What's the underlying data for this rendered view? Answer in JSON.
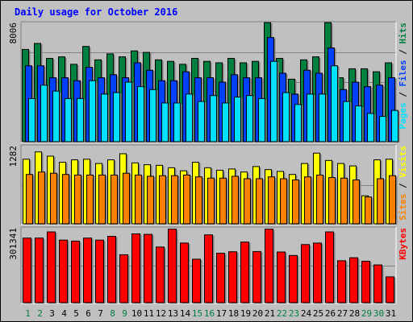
{
  "title": "Daily usage for October 2016",
  "colors": {
    "background": "#c0c0c0",
    "title": "#0000ff",
    "hits": "#008040",
    "files": "#0040ff",
    "pages": "#00e0ff",
    "visits": "#ffff00",
    "sites": "#ff8000",
    "kbytes": "#ff0000",
    "weekday": "#000000",
    "weekend": "#008040"
  },
  "chart_data": [
    {
      "type": "bar",
      "panel": "hits-files-pages",
      "categories": [
        "1",
        "2",
        "3",
        "4",
        "5",
        "6",
        "7",
        "8",
        "9",
        "10",
        "11",
        "12",
        "13",
        "14",
        "15",
        "16",
        "17",
        "18",
        "19",
        "20",
        "21",
        "22",
        "23",
        "24",
        "25",
        "26",
        "27",
        "28",
        "29",
        "30",
        "31"
      ],
      "weekend_days": [
        "1",
        "2",
        "8",
        "9",
        "15",
        "16",
        "22",
        "23",
        "29",
        "30"
      ],
      "max_label": "8006",
      "ylim": [
        0,
        8006
      ],
      "series": [
        {
          "name": "Hits",
          "values": [
            6200,
            6600,
            5600,
            5700,
            5200,
            6400,
            5500,
            5900,
            5700,
            6100,
            6000,
            5500,
            5400,
            5200,
            5600,
            5400,
            5300,
            5600,
            5300,
            5400,
            8000,
            5600,
            4200,
            5500,
            5700,
            8000,
            4300,
            4900,
            4900,
            4700,
            5300
          ]
        },
        {
          "name": "Files",
          "values": [
            5100,
            5100,
            4300,
            4300,
            4100,
            5000,
            4300,
            4500,
            4300,
            5300,
            4800,
            4100,
            4100,
            4700,
            4300,
            4300,
            4000,
            4500,
            4300,
            4300,
            7000,
            4600,
            3200,
            4800,
            4600,
            6300,
            3500,
            4000,
            3700,
            3800,
            4300
          ]
        },
        {
          "name": "Pages",
          "values": [
            2900,
            3800,
            3400,
            2900,
            2900,
            4100,
            3200,
            3300,
            4000,
            3700,
            3500,
            2600,
            2600,
            3200,
            2700,
            3100,
            2600,
            3000,
            3100,
            2900,
            5400,
            3300,
            2500,
            3200,
            3200,
            5100,
            2700,
            2400,
            1900,
            1700,
            2100
          ]
        }
      ]
    },
    {
      "type": "bar",
      "panel": "visits-sites",
      "categories": [
        "1",
        "2",
        "3",
        "4",
        "5",
        "6",
        "7",
        "8",
        "9",
        "10",
        "11",
        "12",
        "13",
        "14",
        "15",
        "16",
        "17",
        "18",
        "19",
        "20",
        "21",
        "22",
        "23",
        "24",
        "25",
        "26",
        "27",
        "28",
        "29",
        "30",
        "31"
      ],
      "max_label": "1282",
      "ylim": [
        0,
        1282
      ],
      "series": [
        {
          "name": "Visits",
          "values": [
            1060,
            1180,
            1110,
            1010,
            1050,
            1060,
            990,
            1050,
            1150,
            1000,
            970,
            960,
            920,
            870,
            1010,
            920,
            880,
            900,
            850,
            940,
            890,
            860,
            810,
            990,
            1160,
            1040,
            990,
            950,
            460,
            1050,
            1060
          ]
        },
        {
          "name": "Sites",
          "values": [
            810,
            850,
            830,
            810,
            800,
            800,
            800,
            800,
            830,
            800,
            780,
            790,
            790,
            800,
            770,
            750,
            750,
            780,
            740,
            740,
            770,
            740,
            720,
            770,
            800,
            760,
            750,
            720,
            440,
            740,
            790
          ]
        }
      ]
    },
    {
      "type": "bar",
      "panel": "kbytes",
      "categories": [
        "1",
        "2",
        "3",
        "4",
        "5",
        "6",
        "7",
        "8",
        "9",
        "10",
        "11",
        "12",
        "13",
        "14",
        "15",
        "16",
        "17",
        "18",
        "19",
        "20",
        "21",
        "22",
        "23",
        "24",
        "25",
        "26",
        "27",
        "28",
        "29",
        "30",
        "31"
      ],
      "max_label": "301341",
      "ylim": [
        0,
        301341
      ],
      "series": [
        {
          "name": "KBytes",
          "values": [
            260000,
            260000,
            285000,
            252000,
            248000,
            260000,
            252000,
            267000,
            193000,
            277000,
            275000,
            224000,
            296000,
            240000,
            175000,
            273000,
            199000,
            205000,
            244000,
            206000,
            296000,
            204000,
            190000,
            234000,
            240000,
            285000,
            169000,
            181000,
            167000,
            152000,
            104000
          ]
        }
      ]
    }
  ]
}
